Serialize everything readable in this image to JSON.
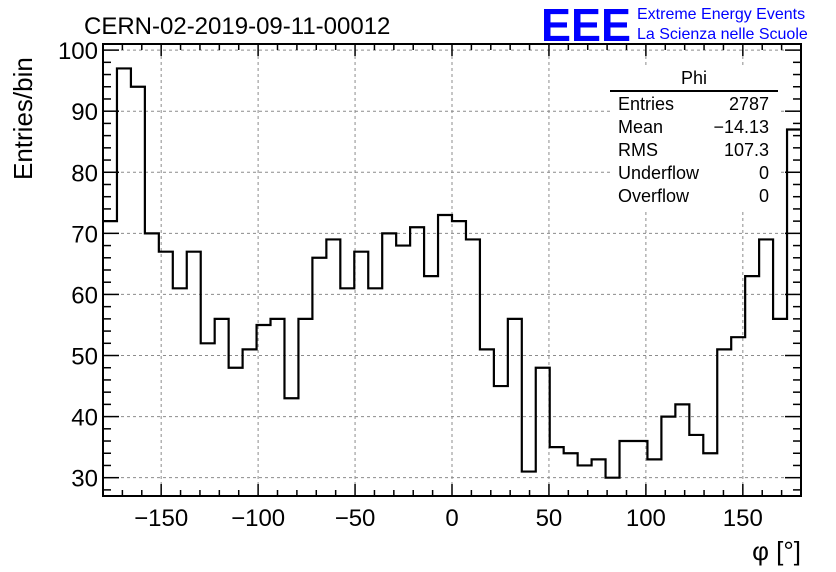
{
  "chart_data": {
    "type": "bar",
    "style": "step-histogram",
    "title": "CERN-02-2019-09-11-00012",
    "xlabel": "φ [°]",
    "ylabel": "Entries/bin",
    "xlim": [
      -180,
      180
    ],
    "ylim": [
      27,
      101
    ],
    "grid": true,
    "bin_width": 7.2,
    "bin_low_edges": [
      -180,
      -172.8,
      -165.6,
      -158.4,
      -151.2,
      -144,
      -136.8,
      -129.6,
      -122.4,
      -115.2,
      -108,
      -100.8,
      -93.6,
      -86.4,
      -79.2,
      -72,
      -64.8,
      -57.6,
      -50.4,
      -43.2,
      -36,
      -28.8,
      -21.6,
      -14.4,
      -7.2,
      0,
      7.2,
      14.4,
      21.6,
      28.8,
      36,
      43.2,
      50.4,
      57.6,
      64.8,
      72,
      79.2,
      86.4,
      93.6,
      100.8,
      108,
      115.2,
      122.4,
      129.6,
      136.8,
      144,
      151.2,
      158.4,
      165.6,
      172.8
    ],
    "values": [
      72,
      97,
      94,
      70,
      67,
      61,
      67,
      52,
      56,
      48,
      51,
      55,
      56,
      43,
      56,
      66,
      69,
      61,
      67,
      61,
      70,
      68,
      71,
      63,
      73,
      72,
      69,
      51,
      45,
      56,
      31,
      48,
      35,
      34,
      32,
      33,
      30,
      36,
      36,
      33,
      40,
      42,
      37,
      34,
      51,
      53,
      63,
      69,
      56,
      87
    ],
    "x_ticks": [
      -150,
      -100,
      -50,
      0,
      50,
      100,
      150
    ],
    "x_tick_labels": [
      "−150",
      "−100",
      "−50",
      "0",
      "50",
      "100",
      "150"
    ],
    "y_ticks": [
      30,
      40,
      50,
      60,
      70,
      80,
      90,
      100
    ],
    "y_tick_labels": [
      "30",
      "40",
      "50",
      "60",
      "70",
      "80",
      "90",
      "100"
    ],
    "stats_box": {
      "title": "Phi",
      "rows": [
        {
          "label": "Entries",
          "value": "2787"
        },
        {
          "label": "Mean",
          "value": "−14.13"
        },
        {
          "label": "RMS",
          "value": "107.3"
        },
        {
          "label": "Underflow",
          "value": "0"
        },
        {
          "label": "Overflow",
          "value": "0"
        }
      ]
    }
  },
  "branding": {
    "logo": "EEE",
    "line1": "Extreme Energy Events",
    "line2": "La Scienza nelle Scuole",
    "color": "#0000ff"
  }
}
